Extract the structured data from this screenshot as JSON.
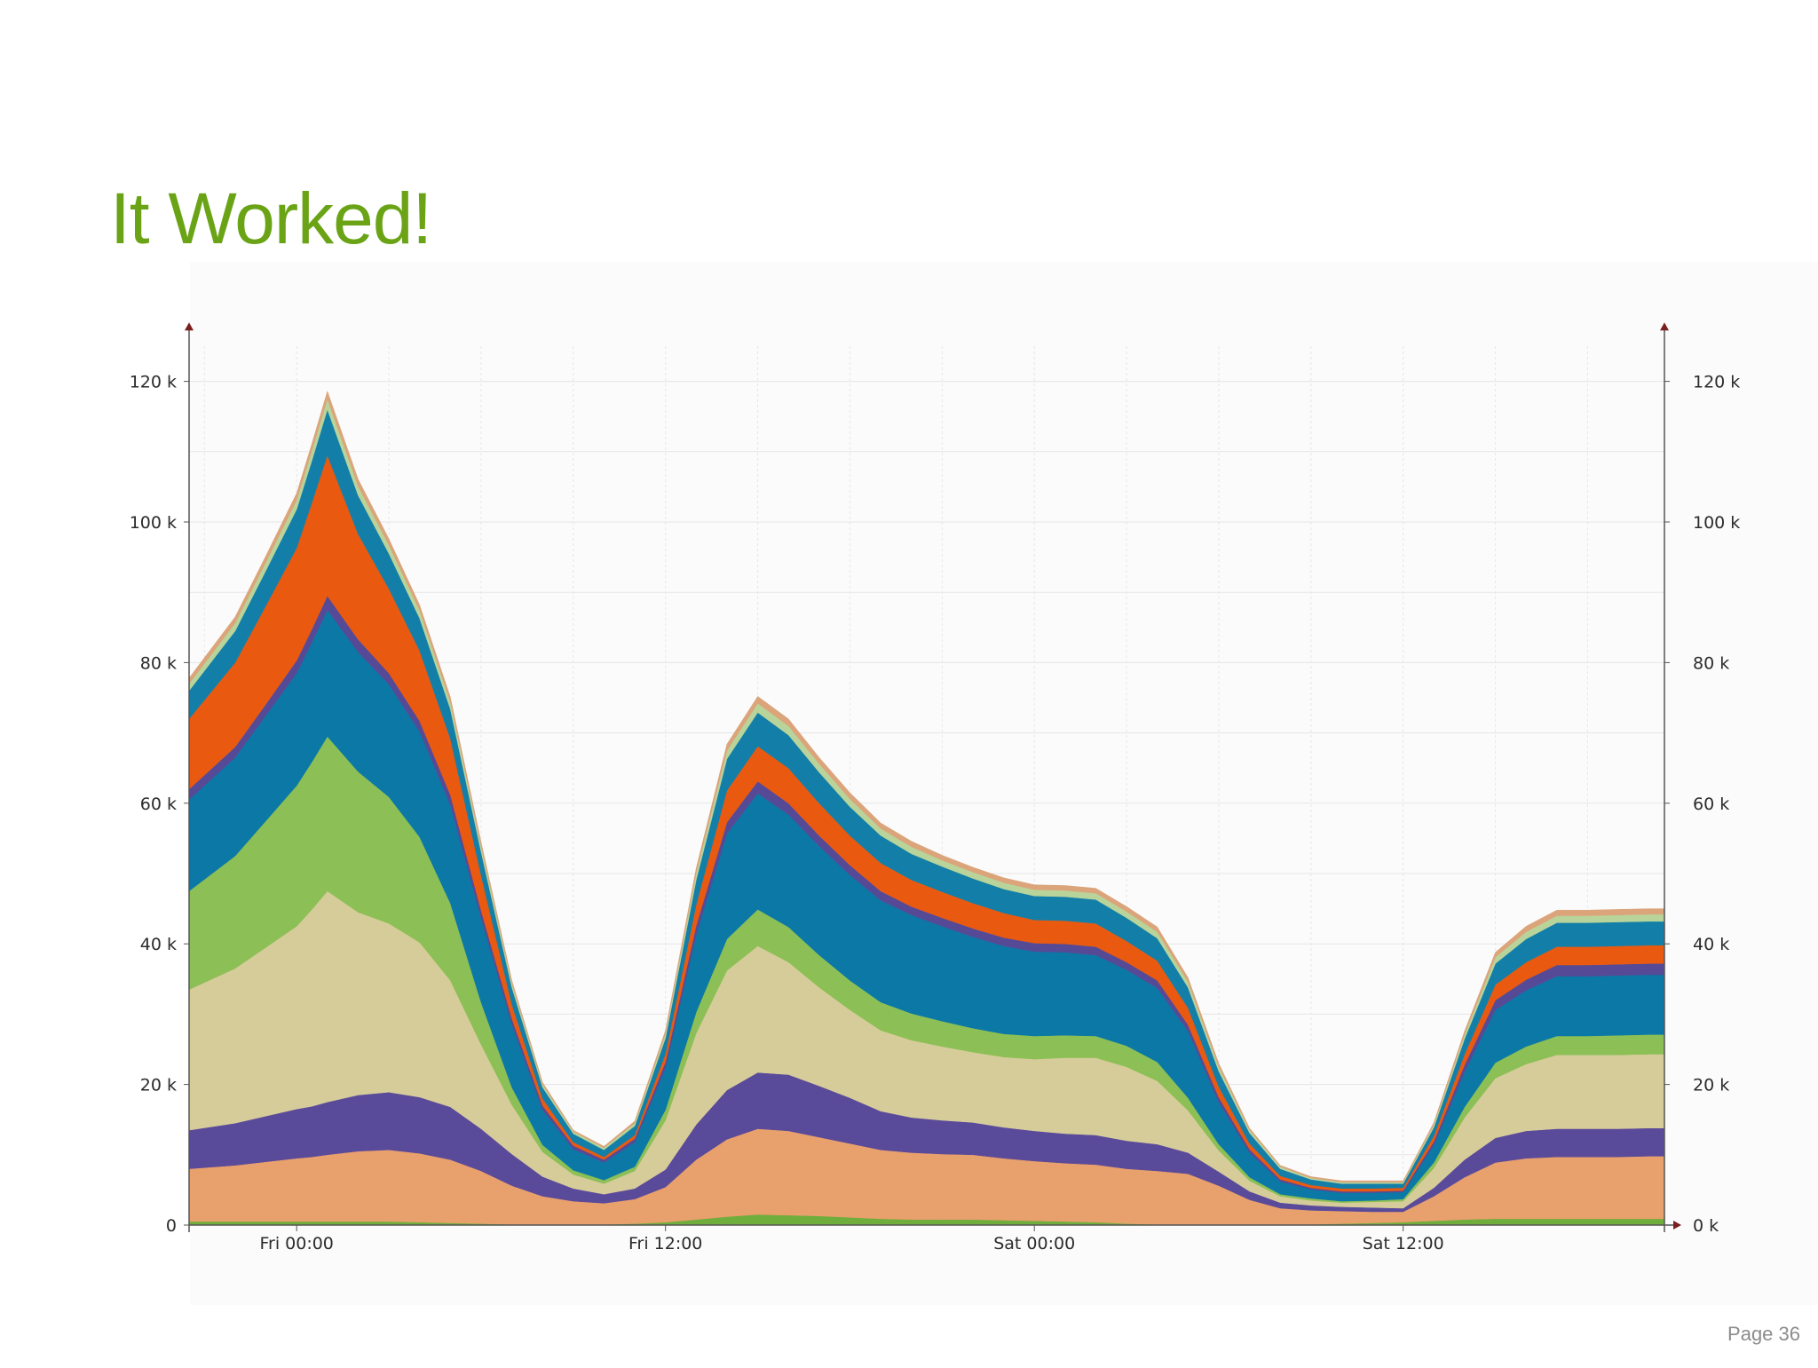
{
  "slide": {
    "title": "It Worked!",
    "page_label": "Page 36"
  },
  "chart_data": {
    "type": "area",
    "stacked": true,
    "title": "",
    "xlabel": "",
    "ylabel": "",
    "ylim": [
      0,
      125000
    ],
    "grid": true,
    "y_ticks": [
      {
        "value": 0,
        "left_label": "0",
        "right_label": "0 k"
      },
      {
        "value": 20000,
        "left_label": "20 k",
        "right_label": "20 k"
      },
      {
        "value": 40000,
        "left_label": "40 k",
        "right_label": "40 k"
      },
      {
        "value": 60000,
        "left_label": "60 k",
        "right_label": "60 k"
      },
      {
        "value": 80000,
        "left_label": "80 k",
        "right_label": "80 k"
      },
      {
        "value": 100000,
        "left_label": "100 k",
        "right_label": "100 k"
      },
      {
        "value": 120000,
        "left_label": "120 k",
        "right_label": "120 k"
      }
    ],
    "x_range_hours": [
      -3.5,
      44.5
    ],
    "x_ticks": [
      {
        "hour": 0,
        "label": "Fri 00:00"
      },
      {
        "hour": 12,
        "label": "Fri 12:00"
      },
      {
        "hour": 24,
        "label": "Sat 00:00"
      },
      {
        "hour": 36,
        "label": "Sat 12:00"
      }
    ],
    "x_hours": [
      -3.5,
      -2,
      -1,
      0,
      0.5,
      1,
      2,
      3,
      4,
      5,
      6,
      7,
      8,
      9,
      10,
      11,
      12,
      13,
      14,
      15,
      16,
      17,
      18,
      19,
      20,
      21,
      22,
      23,
      24,
      25,
      26,
      27,
      28,
      29,
      30,
      31,
      32,
      33,
      34,
      35,
      36,
      37,
      38,
      39,
      40,
      41,
      42,
      43,
      44,
      44.5
    ],
    "series": [
      {
        "name": "green base",
        "color": "#6fae3c",
        "values": [
          500,
          500,
          500,
          500,
          500,
          500,
          500,
          500,
          400,
          300,
          200,
          100,
          100,
          100,
          100,
          200,
          400,
          800,
          1200,
          1500,
          1400,
          1300,
          1100,
          900,
          800,
          800,
          800,
          700,
          600,
          500,
          400,
          200,
          100,
          100,
          100,
          100,
          100,
          100,
          200,
          300,
          400,
          600,
          800,
          900,
          900,
          900,
          900,
          900,
          900,
          900
        ]
      },
      {
        "name": "peach",
        "color": "#e8a06c",
        "values": [
          7500,
          8000,
          8500,
          9000,
          9200,
          9500,
          10000,
          10200,
          9800,
          9000,
          7500,
          5500,
          4000,
          3300,
          3000,
          3500,
          5000,
          8500,
          11000,
          12200,
          12000,
          11200,
          10500,
          9800,
          9500,
          9300,
          9200,
          8800,
          8500,
          8300,
          8200,
          7800,
          7600,
          7200,
          5500,
          3500,
          2300,
          2000,
          1800,
          1600,
          1500,
          3500,
          6000,
          8000,
          8600,
          8800,
          8800,
          8800,
          8900,
          8900
        ]
      },
      {
        "name": "purple",
        "color": "#5a4a9a",
        "values": [
          5500,
          6000,
          6500,
          7000,
          7200,
          7500,
          8000,
          8200,
          8000,
          7500,
          6000,
          4500,
          2800,
          1800,
          1300,
          1500,
          2500,
          5000,
          7000,
          8000,
          8000,
          7300,
          6500,
          5500,
          5000,
          4800,
          4600,
          4400,
          4300,
          4200,
          4200,
          4000,
          3800,
          3000,
          2000,
          1200,
          800,
          700,
          600,
          600,
          500,
          1200,
          2500,
          3500,
          3900,
          4000,
          4000,
          4000,
          4000,
          4000
        ]
      },
      {
        "name": "khaki",
        "color": "#d6cc9a",
        "values": [
          20000,
          22000,
          24000,
          26000,
          28000,
          30000,
          26000,
          24000,
          22000,
          18000,
          12000,
          7000,
          3500,
          2000,
          1500,
          2500,
          7000,
          13000,
          17000,
          18000,
          16000,
          14000,
          12500,
          11500,
          11000,
          10500,
          10000,
          10000,
          10200,
          10800,
          11000,
          10500,
          9000,
          6000,
          3000,
          1500,
          900,
          700,
          600,
          800,
          1000,
          2800,
          6000,
          8500,
          9500,
          10500,
          10500,
          10500,
          10500,
          10500
        ]
      },
      {
        "name": "light green",
        "color": "#8cbf55",
        "values": [
          14000,
          16000,
          18000,
          20000,
          21000,
          22000,
          20000,
          18000,
          15000,
          11000,
          6000,
          2500,
          1000,
          600,
          500,
          600,
          1500,
          3000,
          4500,
          5200,
          5000,
          4600,
          4200,
          4000,
          3800,
          3600,
          3400,
          3300,
          3300,
          3200,
          3100,
          3000,
          2700,
          1800,
          900,
          500,
          300,
          300,
          200,
          200,
          300,
          800,
          1500,
          2200,
          2500,
          2700,
          2700,
          2800,
          2800,
          2800
        ]
      },
      {
        "name": "blue",
        "color": "#0b78a6",
        "values": [
          13000,
          14000,
          15000,
          16000,
          17000,
          18000,
          17000,
          16000,
          15000,
          14000,
          12000,
          9000,
          5000,
          3000,
          2500,
          3500,
          6000,
          11000,
          15000,
          16500,
          16000,
          15500,
          15000,
          14500,
          14000,
          13500,
          13000,
          12500,
          12000,
          11800,
          11500,
          10800,
          10500,
          9500,
          6000,
          3500,
          1800,
          1300,
          1200,
          1100,
          1000,
          2500,
          5000,
          7500,
          8000,
          8500,
          8500,
          8500,
          8500,
          8500
        ]
      },
      {
        "name": "dark purple",
        "color": "#564a96",
        "values": [
          1500,
          1500,
          1600,
          1800,
          1900,
          2000,
          1800,
          1600,
          1500,
          1400,
          1100,
          800,
          600,
          500,
          400,
          500,
          800,
          1300,
          1600,
          1700,
          1600,
          1500,
          1400,
          1300,
          1200,
          1200,
          1200,
          1200,
          1200,
          1200,
          1200,
          1100,
          1100,
          900,
          700,
          500,
          300,
          200,
          200,
          200,
          200,
          500,
          1000,
          1400,
          1500,
          1600,
          1600,
          1600,
          1600,
          1600
        ]
      },
      {
        "name": "orange",
        "color": "#e95a10",
        "values": [
          10000,
          12000,
          14000,
          16000,
          18000,
          20000,
          15000,
          12000,
          10000,
          8000,
          5000,
          2000,
          1000,
          500,
          400,
          500,
          1200,
          3000,
          4500,
          5000,
          5000,
          4600,
          4200,
          4000,
          3800,
          3700,
          3600,
          3500,
          3300,
          3300,
          3300,
          3000,
          2800,
          2400,
          1500,
          800,
          500,
          400,
          400,
          400,
          400,
          800,
          1500,
          2200,
          2500,
          2600,
          2600,
          2600,
          2600,
          2600
        ]
      },
      {
        "name": "teal blue",
        "color": "#137fa8",
        "values": [
          4000,
          4500,
          5000,
          5500,
          6000,
          6500,
          5500,
          5000,
          4600,
          4200,
          3300,
          2400,
          1600,
          1200,
          1000,
          1300,
          2200,
          3500,
          4500,
          4800,
          4700,
          4400,
          4100,
          3900,
          3700,
          3600,
          3500,
          3400,
          3400,
          3400,
          3400,
          3300,
          3200,
          2900,
          2200,
          1500,
          1000,
          800,
          700,
          700,
          600,
          1200,
          2200,
          3000,
          3300,
          3400,
          3400,
          3400,
          3400,
          3400
        ]
      },
      {
        "name": "light trim",
        "color": "#b9d49a",
        "values": [
          1000,
          1100,
          1200,
          1300,
          1400,
          1500,
          1300,
          1200,
          1100,
          1000,
          800,
          600,
          400,
          300,
          300,
          400,
          600,
          1000,
          1200,
          1300,
          1300,
          1200,
          1100,
          1000,
          1000,
          900,
          900,
          900,
          900,
          900,
          900,
          900,
          900,
          800,
          600,
          400,
          300,
          200,
          200,
          200,
          200,
          400,
          600,
          900,
          1000,
          1000,
          1000,
          1000,
          1000,
          1000
        ]
      },
      {
        "name": "tan trim",
        "color": "#dba47a",
        "values": [
          800,
          900,
          900,
          1000,
          1000,
          1100,
          1000,
          900,
          800,
          700,
          600,
          400,
          300,
          200,
          200,
          300,
          500,
          700,
          900,
          1000,
          1000,
          900,
          900,
          800,
          800,
          700,
          700,
          700,
          700,
          700,
          700,
          700,
          700,
          600,
          500,
          300,
          200,
          200,
          200,
          200,
          200,
          300,
          500,
          700,
          800,
          800,
          800,
          800,
          800,
          800
        ]
      }
    ]
  }
}
